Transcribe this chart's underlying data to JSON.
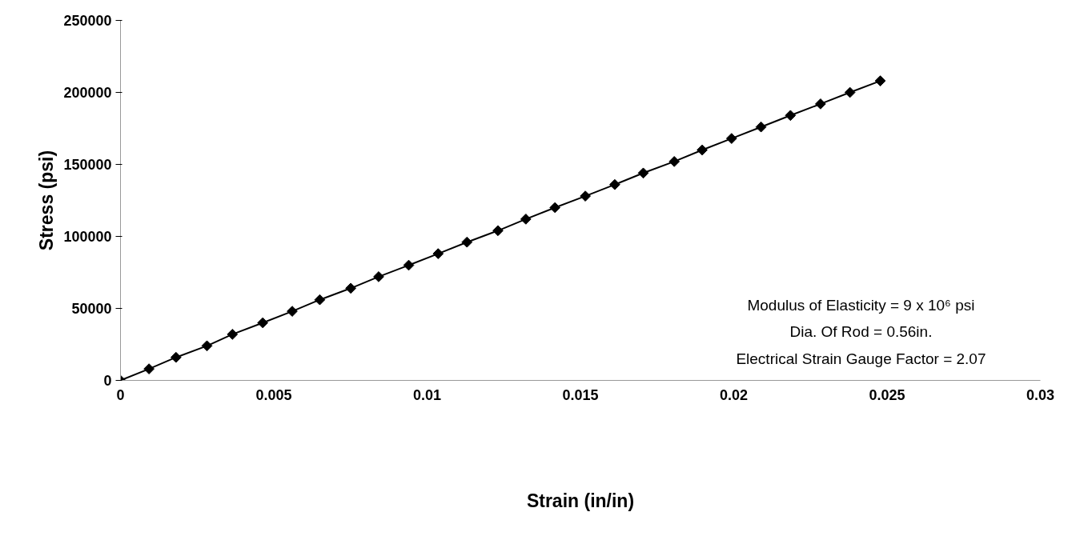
{
  "chart_data": {
    "type": "line",
    "xlabel": "Strain (in/in)",
    "ylabel": "Stress (psi)",
    "x": [
      0,
      0.00093,
      0.00181,
      0.00282,
      0.00365,
      0.00464,
      0.0056,
      0.0065,
      0.00751,
      0.00842,
      0.0094,
      0.01036,
      0.0113,
      0.01231,
      0.01322,
      0.01417,
      0.01516,
      0.01612,
      0.01705,
      0.01806,
      0.01897,
      0.01993,
      0.02089,
      0.02185,
      0.02283,
      0.02379,
      0.02478
    ],
    "series": [
      {
        "color": "#000000",
        "values": [
          0,
          8000,
          16000,
          24000,
          32000,
          40000,
          48000,
          56000,
          64000,
          72000,
          80000,
          88000,
          96000,
          104000,
          112000,
          120000,
          128000,
          136000,
          144000,
          152000,
          160000,
          168000,
          176000,
          184000,
          192000,
          200000,
          208000
        ]
      }
    ],
    "xlim": [
      0,
      0.03
    ],
    "xticks": [
      0,
      0.005,
      0.01,
      0.015,
      0.02,
      0.025,
      0.03
    ],
    "ylim": [
      0,
      250000
    ],
    "yticks": [
      0,
      50000,
      100000,
      150000,
      200000,
      250000
    ],
    "marker": "diamond",
    "line_style": "solid",
    "grid": false,
    "annotations": [
      "Modulus of Elasticity = 9 x 10⁶ psi",
      "Dia. Of Rod = 0.56in.",
      "Electrical Strain Gauge Factor = 2.07"
    ]
  }
}
